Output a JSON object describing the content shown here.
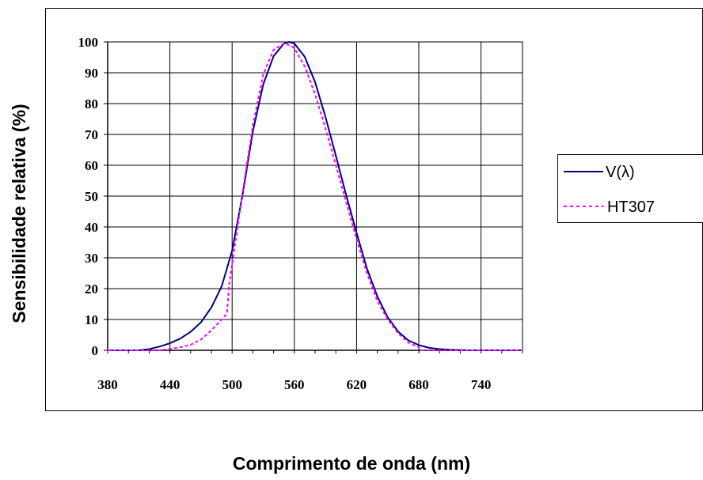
{
  "chart_data": {
    "type": "line",
    "xlabel": "Comprimento de onda (nm)",
    "ylabel": "Sensibilidade relativa (%)",
    "xlim": [
      380,
      780
    ],
    "ylim": [
      0,
      100
    ],
    "x_ticks": [
      380,
      440,
      500,
      560,
      620,
      680,
      740
    ],
    "y_ticks": [
      0,
      10,
      20,
      30,
      40,
      50,
      60,
      70,
      80,
      90,
      100
    ],
    "grid": true,
    "legend_position": "right",
    "series": [
      {
        "name": "V(λ)",
        "color": "#000080",
        "dash": "solid",
        "x": [
          380,
          390,
          400,
          410,
          420,
          430,
          440,
          450,
          460,
          470,
          480,
          490,
          500,
          510,
          520,
          530,
          540,
          550,
          555,
          560,
          570,
          580,
          590,
          600,
          610,
          620,
          630,
          640,
          650,
          660,
          670,
          680,
          690,
          700,
          710,
          720,
          730,
          740,
          750,
          760,
          770,
          780
        ],
        "y": [
          0,
          0,
          0,
          0,
          0.4,
          1.2,
          2.3,
          3.8,
          6,
          9.1,
          13.9,
          20.8,
          32.3,
          50.3,
          71,
          86.2,
          95.4,
          99.5,
          100,
          99.5,
          95.2,
          87,
          75.7,
          63.1,
          50.3,
          38.1,
          26.5,
          17.5,
          10.7,
          6.1,
          3.2,
          1.7,
          0.8,
          0.4,
          0.2,
          0.1,
          0,
          0,
          0,
          0,
          0,
          0
        ]
      },
      {
        "name": "HT307",
        "color": "#ff00ff",
        "dash": "dotted",
        "x": [
          380,
          390,
          400,
          410,
          420,
          430,
          440,
          450,
          460,
          470,
          480,
          490,
          495,
          497,
          500,
          510,
          520,
          530,
          540,
          550,
          555,
          560,
          570,
          580,
          590,
          600,
          610,
          620,
          630,
          640,
          650,
          660,
          670,
          680,
          682,
          690,
          700,
          710,
          720,
          730,
          740,
          750,
          760,
          770,
          780
        ],
        "y": [
          0,
          0,
          0,
          0,
          0,
          0,
          0.5,
          1,
          1.8,
          3.5,
          6.5,
          10,
          12,
          21,
          28,
          51,
          73,
          89.5,
          97.5,
          99.5,
          99,
          98,
          92,
          83,
          72,
          60,
          48,
          36,
          25,
          16,
          10,
          5.5,
          2.5,
          1,
          0,
          0,
          0,
          0,
          0,
          0,
          0,
          0,
          0,
          0,
          0
        ]
      }
    ]
  }
}
